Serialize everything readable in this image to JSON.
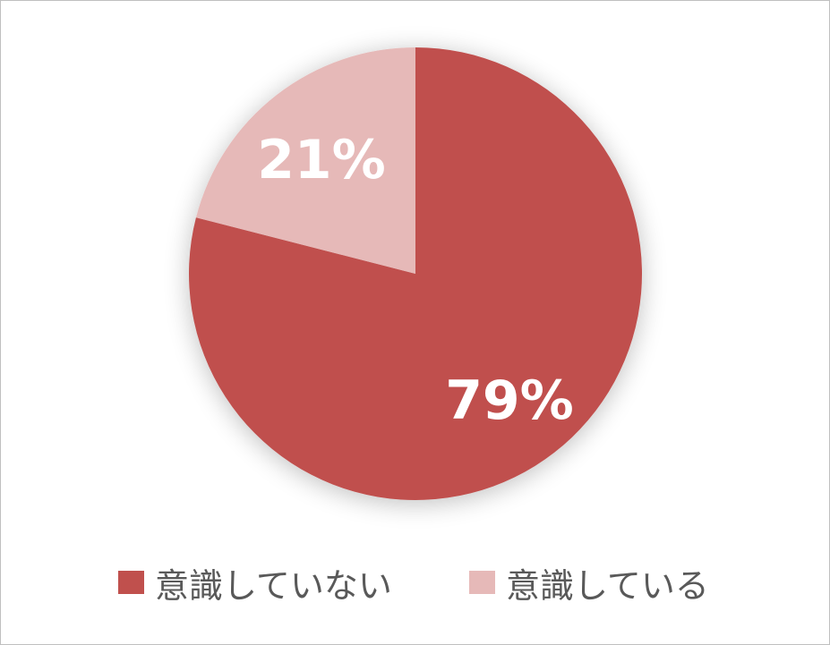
{
  "chart_data": {
    "type": "pie",
    "categories": [
      "意識していない",
      "意識している"
    ],
    "values": [
      79,
      21
    ],
    "data_labels": [
      "79%",
      "21%"
    ],
    "colors": [
      "#C0504D",
      "#E6B9B8"
    ],
    "start_angle": "top",
    "direction": "clockwise",
    "legend": "bottom"
  }
}
